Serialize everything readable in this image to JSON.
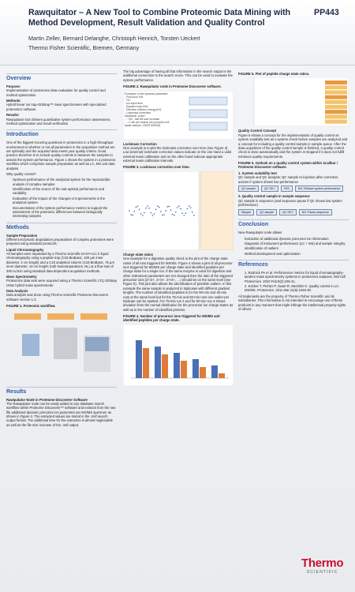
{
  "header": {
    "title": "Rawquitator – A New Tool to Combine Proteomic Data Mining with Method Development, Result Validation and Quality Control",
    "poster_id": "PP443",
    "authors": "Martin Zeller, Bernard Delanghe, Christoph Henrich, Torsten Ueckert",
    "affiliation": "Thermo Fisher Scientific, Bremen, Germany"
  },
  "columns": [
    {
      "sections": [
        {
          "heading": "Overview",
          "blocks": [
            {
              "subheading": "Purpose:"
            },
            {
              "text": "Implementation of proteomics data evaluation for quality control and method optimization"
            },
            {
              "subheading": "Methods:"
            },
            {
              "text": "Hybrid linear ion trap-Orbitrap™ mass spectrometer with specialized proteomics software."
            },
            {
              "subheading": "Results:"
            },
            {
              "text": "Rawquitator tool delivers quantitative system performance assessment, method optimization and result verification."
            }
          ]
        },
        {
          "heading": "Introduction",
          "blocks": [
            {
              "text": "One of the biggest recurring questions in proteomics in a high-throughput environment is whether or not all parameters in the acquisition method are set optimally and the acquired data meets your quality criteria. Good practice therefore is to include quality controls in between the samples to assess the system performance. Figure 1 shows the system in a proteomic workflow which comprises sample preparation as well as LC, MS and data analysis."
            },
            {
              "text": "Why quality control?"
            },
            {
              "items": [
                "Optimum performance of the analytical system for the reproducible analysis of complex samples",
                "Identification of the source of the sub-optimal performance and variability",
                "Evaluation of the impact of the changes or improvements in the analytical system",
                "Documentation of the system performance metrics to support the assessment of the proteomic differences between biologically interesting samples"
              ]
            }
          ]
        },
        {
          "heading": "Methods",
          "blocks": [
            {
              "subheading": "Sample Preparation"
            },
            {
              "text": "Different enzymatic degradation preparations of complex proteomes were prepared using standard protocols."
            },
            {
              "subheading": "Liquid Chromatography"
            },
            {
              "text": "All samples were separated by a Thermo Scientific EASY-nLC II liquid chromatography using a peptide trap (C18 BioBasic, 100 µm inner diameter, 2 cm length) and a C18 analytical column (C18 BioBasic, 75 µm inner diameter, 10 cm length; both NanoSeparations, NL) at a flow rate of 300 nL/min using standard data-dependent acquisition methods."
            },
            {
              "subheading": "Mass Spectrometry"
            },
            {
              "text": "Proteomics data sets were acquired using a Thermo Scientific LTQ Orbitrap Velos hybrid mass spectrometer."
            },
            {
              "subheading": "Data Analysis"
            },
            {
              "text": "Data analysis was done using Thermo Scientific Proteome Discoverer software version 1.3."
            },
            {
              "caption": "FIGURE 1. Proteomic workflow."
            }
          ]
        },
        {
          "heading": "Results",
          "blocks": [
            {
              "subheading": "Rawquitator Node in Proteome Discoverer Software"
            },
            {
              "text": "The Rawquitator node can be easily added to any database search workflow within Proteome Discoverer™ software and extracts from the raw file additional dynamic precursor ion parameter per MS/MS spectrum as shown in Figure 2. The extracted values are stored in the .msf search output format. The additional time for the extraction is almost neglectable as well as the file size increase of the .msf output."
            }
          ]
        }
      ]
    },
    {
      "sections": [
        {
          "blocks": [
            {
              "text": "The big advantage of having all that information in the search output is the additional connection to the search score. This can be used to evaluate the system performance."
            },
            {
              "caption": "FIGURE 2. Rawquitator node in Proteome Discoverer software.",
              "notes": [
                "Extraction of the dynamic parameter:",
                "- Precursor S/N",
                "- TIC",
                "- Ion inject time",
                "- Elapsed scan time",
                "- Effective collision energy [eV]",
                "- Lockmass correction",
                "Additional „costs“:",
                "- ~ 5%, .msf file size increase",
                "- ~ 2 min per search job (complex cell lysate sample, 13000 MS/MS)"
              ]
            },
            {
              "subheading": "Lockmass Correction"
            },
            {
              "text": "One example is to plot the lockmass correction over time (see Figure 3). Low (internal) lockmass correction values indicate on the one hand a valid external mass calibration and on the other hand indicate appropriate external mass calibration intervals."
            },
            {
              "caption": "FIGURE 3. Lockmass correction over time."
            },
            {
              "subheading": "Charge state ratios"
            },
            {
              "text": "One example for a digestion quality check is the plot of the charge state ratios of all ions triggered for MS/MS. Figure 4 shows a plot of all precursor ions triggered for MS/MS per charge state and identified peptides per charge state for a single run. If the same enzyme is used for digestion and other instrument parameters are not changed then the ratio of the triggered precursor ions (2+/3+, 2+/4+, 3+/4+, …) should be on the same level (see Figure 5). This plot also allows the identification of possible outliers. In this example the same sample is analyzed in triplicates with different gradient lengths. The number of identified peptides is for the 90-min and 45-min runs at the same level but for the 75-min and 60-min runs one outlier per triplicate can be spotted. For 75-min run 2 and for 60-min run 3 shows deviation from the normal distribution for the precursor ion charge states as well as in the number of identified proteins."
            },
            {
              "caption": "FIGURE 4. Number of precursor ions triggered for MS/MS and identified peptides per charge state."
            }
          ]
        }
      ]
    },
    {
      "sections": [
        {
          "blocks": [
            {
              "caption": "FIGURE 5. Plot of peptide charge state ratios."
            },
            {
              "subheading": "Quality Control Concept"
            },
            {
              "text": "Figure 6 shows a concept for the implementation of quality control as system suitability test as a system check before samples are analyzed and a concept for including a quality control sample in sample queue. After the data acquisition of the quality control sample is finished, a quality control check is done automatically and the system is stopped if it does not fulfill minimum quality requirements."
            },
            {
              "caption": "FIGURE 6. Outlook on a quality control system within Xcalibur / Proteome Discoverer software."
            },
            {
              "subheading": "1. System suitability test"
            },
            {
              "text": "QC sample and QC analysis; QC sample re-injection after corrective actions if system shows low performance"
            },
            {
              "labels": [
                "QC sample",
                "QC OK?",
                "YES",
                "NO: Reduce system performance"
              ]
            },
            {
              "subheading": "2. Quality control sample in sample sequence"
            },
            {
              "text": "QC sample in sequence (and sequence pause if QC shows low system performance)"
            },
            {
              "labels": [
                "Sample",
                "QC sample",
                "QC OK?",
                "NO: Pause sequence"
              ]
            }
          ]
        },
        {
          "heading": "Conclusion",
          "blocks": [
            {
              "text": "New Rawquitator node allows"
            },
            {
              "items": [
                "Extraction of additional dynamic precursor ion information",
                "Diagnosis of instrument performance (LC + MS) and sample integrity",
                "Identification of outliers",
                "Method development and optimization"
              ]
            }
          ]
        },
        {
          "heading": "References",
          "blocks": [
            {
              "items": [
                "1. Rudnick PA et al. Performance metrics for liquid chromatography-tandem mass spectrometry systems in proteomics analyses. Mol Cell Proteomics. 2010 Feb;9(2):225-41.",
                "2. Köcher T, Pichler P, Swart R, Mechtler K. Quality control in LC-MS/MS. Proteomics. 2011 Mar;11(6):1026-30."
              ]
            },
            {
              "text": "All trademarks are the property of Thermo Fisher Scientific and its subsidiaries. This information is not intended to encourage use of these products in any manners that might infringe the intellectual property rights of others."
            }
          ]
        }
      ]
    }
  ],
  "logo": {
    "brand": "Thermo",
    "tagline": "SCIENTIFIC"
  }
}
